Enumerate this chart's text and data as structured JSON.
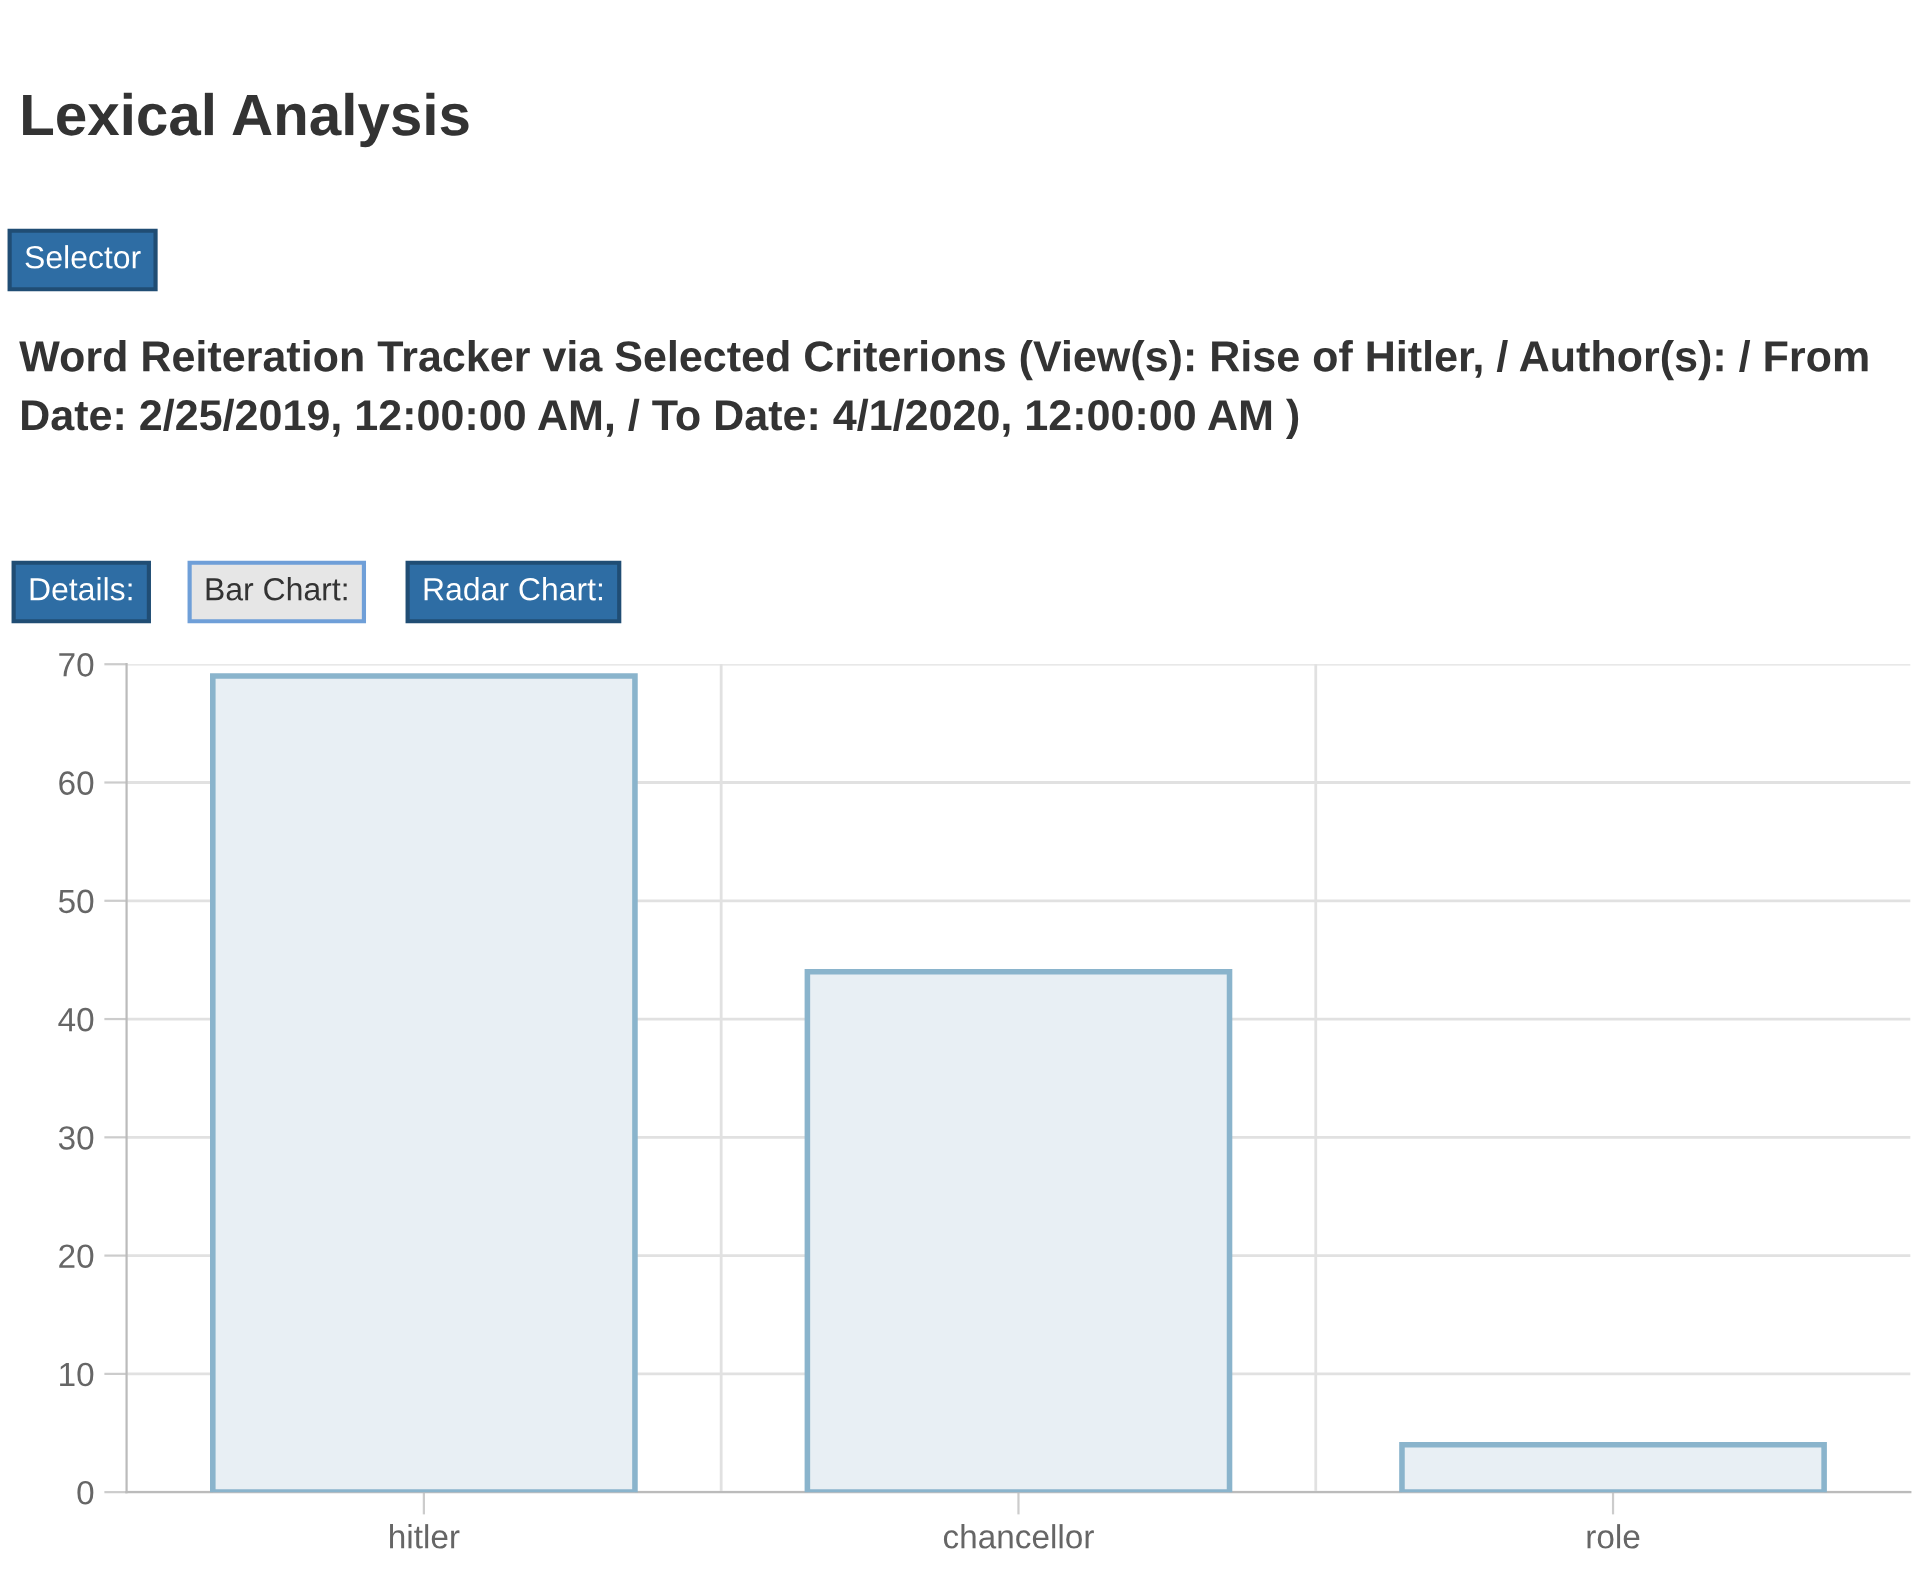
{
  "chart_data": {
    "type": "bar",
    "title": "Lexical Analysis",
    "subtitle": "Word Reiteration Tracker via Selected Criterions (View(s): Rise of Hitler, / Author(s): / From Date: 2/25/2019, 12:00:00 AM, / To Date: 4/1/2020, 12:00:00 AM )",
    "annotations": [
      "Selector",
      "Details:",
      "Bar Chart:",
      "Radar Chart:"
    ],
    "categories": [
      "hitler",
      "chancellor",
      "role"
    ],
    "values": [
      69,
      44,
      4
    ],
    "color": "#e8eff4",
    "ylim": [
      0,
      70
    ],
    "yticks": [
      0,
      10,
      20,
      30,
      40,
      50,
      60,
      70
    ],
    "grid": true
  }
}
